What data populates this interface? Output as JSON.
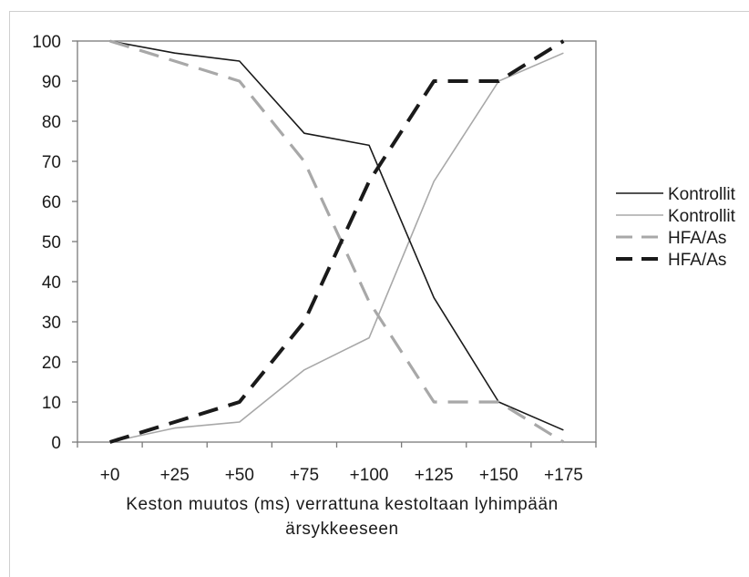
{
  "chart_data": {
    "type": "line",
    "categories": [
      "+0",
      "+25",
      "+50",
      "+75",
      "+100",
      "+125",
      "+150",
      "+175"
    ],
    "xlabel": "Keston muutos (ms) verrattuna kestoltaan lyhimpään ärsykkeeseen",
    "xlabel_lines": [
      "Keston muutos (ms) verrattuna kestoltaan lyhimpään",
      "ärsykkeeseen"
    ],
    "ylabel": "",
    "ylim": [
      0,
      100
    ],
    "yticks": [
      0,
      10,
      20,
      30,
      40,
      50,
      60,
      70,
      80,
      90,
      100
    ],
    "grid": false,
    "legend_position": "right",
    "series": [
      {
        "name": "Kontrollit",
        "style": "solid",
        "color": "#1a1a1a",
        "values": [
          100,
          97,
          95,
          77,
          74,
          36,
          10,
          3
        ]
      },
      {
        "name": "Kontrollit",
        "style": "solid",
        "color": "#a8a8a8",
        "values": [
          0,
          3.5,
          5,
          18,
          26,
          65,
          90,
          97
        ]
      },
      {
        "name": "HFA/As",
        "style": "dashed",
        "color": "#a8a8a8",
        "values": [
          100,
          95,
          90,
          70,
          35,
          10,
          10,
          0
        ]
      },
      {
        "name": "HFA/As",
        "style": "dashed",
        "color": "#1a1a1a",
        "values": [
          0,
          5,
          10,
          30,
          65,
          90,
          90,
          100
        ]
      }
    ]
  }
}
